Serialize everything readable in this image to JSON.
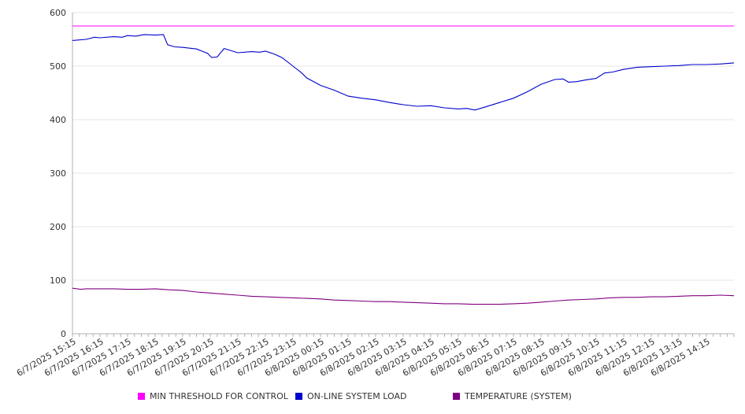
{
  "chart_data": {
    "type": "line",
    "title": "",
    "xlabel": "",
    "ylabel": "",
    "ylim": [
      0,
      600
    ],
    "yticks": [
      0,
      100,
      200,
      300,
      400,
      500,
      600
    ],
    "grid": true,
    "legend_position": "bottom",
    "categories": [
      "6/7/2025 15:15",
      "6/7/2025 16:15",
      "6/7/2025 17:15",
      "6/7/2025 18:15",
      "6/7/2025 19:15",
      "6/7/2025 20:15",
      "6/7/2025 21:15",
      "6/7/2025 22:15",
      "6/7/2025 23:15",
      "6/8/2025 00:15",
      "6/8/2025 01:15",
      "6/8/2025 02:15",
      "6/8/2025 03:15",
      "6/8/2025 04:15",
      "6/8/2025 05:15",
      "6/8/2025 06:15",
      "6/8/2025 07:15",
      "6/8/2025 08:15",
      "6/8/2025 09:15",
      "6/8/2025 10:15",
      "6/8/2025 11:15",
      "6/8/2025 12:15",
      "6/8/2025 13:15",
      "6/8/2025 14:15"
    ],
    "series": [
      {
        "name": "MIN THRESHOLD FOR CONTROL",
        "color": "#ff00ff",
        "x": [
          0,
          24
        ],
        "values": [
          575,
          575
        ]
      },
      {
        "name": "ON-LINE SYSTEM LOAD",
        "color": "#0000cc",
        "x": [
          0,
          0.5,
          0.8,
          1,
          1.5,
          1.8,
          2,
          2.3,
          2.6,
          3,
          3.3,
          3.45,
          3.7,
          4,
          4.5,
          4.9,
          5.05,
          5.25,
          5.5,
          6,
          6.5,
          6.8,
          7,
          7.3,
          7.6,
          8,
          8.3,
          8.5,
          9,
          9.5,
          10,
          10.5,
          11,
          11.5,
          12,
          12.5,
          13,
          13.5,
          14,
          14.3,
          14.6,
          15,
          15.5,
          16,
          16.5,
          17,
          17.5,
          17.8,
          18,
          18.3,
          18.6,
          19,
          19.3,
          19.6,
          20,
          20.5,
          21,
          21.5,
          22,
          22.5,
          23,
          23.5,
          24
        ],
        "values": [
          548,
          550,
          554,
          553,
          555,
          554,
          557,
          556,
          559,
          558,
          559,
          540,
          536,
          535,
          532,
          524,
          516,
          517,
          533,
          525,
          527,
          526,
          528,
          523,
          516,
          500,
          488,
          478,
          464,
          455,
          444,
          440,
          437,
          432,
          428,
          425,
          426,
          422,
          420,
          421,
          418,
          424,
          432,
          440,
          452,
          466,
          475,
          476,
          470,
          471,
          474,
          477,
          487,
          489,
          494,
          498,
          499,
          500,
          501,
          503,
          503,
          504,
          506
        ]
      },
      {
        "name": "TEMPERATURE (SYSTEM)",
        "color": "#800080",
        "x": [
          0,
          0.3,
          0.5,
          1,
          1.5,
          2,
          2.5,
          3,
          3.5,
          4,
          4.5,
          5,
          5.5,
          6,
          6.5,
          7,
          7.5,
          8,
          8.5,
          9,
          9.5,
          10,
          10.5,
          11,
          11.5,
          12,
          12.5,
          13,
          13.5,
          14,
          14.5,
          15,
          15.5,
          16,
          16.5,
          17,
          17.5,
          18,
          18.5,
          19,
          19.5,
          20,
          20.5,
          21,
          21.5,
          22,
          22.5,
          23,
          23.5,
          24
        ],
        "values": [
          85,
          83,
          84,
          84,
          84,
          83,
          83,
          84,
          82,
          81,
          78,
          76,
          74,
          72,
          70,
          69,
          68,
          67,
          66,
          65,
          63,
          62,
          61,
          60,
          60,
          59,
          58,
          57,
          56,
          56,
          55,
          55,
          55,
          56,
          57,
          59,
          61,
          63,
          64,
          65,
          67,
          68,
          68,
          69,
          69,
          70,
          71,
          71,
          72,
          71
        ]
      }
    ]
  }
}
